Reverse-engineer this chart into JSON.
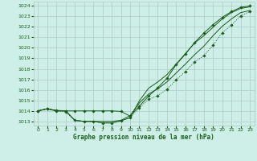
{
  "title": "Graphe pression niveau de la mer (hPa)",
  "bg_color": "#ceeee8",
  "grid_color": "#b0c8c4",
  "line_color": "#1a5c1a",
  "ylim": [
    1012.6,
    1024.4
  ],
  "xlim": [
    -0.5,
    23.5
  ],
  "yticks": [
    1013,
    1014,
    1015,
    1016,
    1017,
    1018,
    1019,
    1020,
    1021,
    1022,
    1023,
    1024
  ],
  "xticks": [
    0,
    1,
    2,
    3,
    4,
    5,
    6,
    7,
    8,
    9,
    10,
    11,
    12,
    13,
    14,
    15,
    16,
    17,
    18,
    19,
    20,
    21,
    22,
    23
  ],
  "series": [
    {
      "name": "line1_dotted_low",
      "x": [
        0,
        1,
        2,
        3,
        4,
        5,
        6,
        7,
        8,
        9,
        10,
        11,
        12,
        13,
        14,
        15,
        16,
        17,
        18,
        19,
        20,
        21,
        22,
        23
      ],
      "y": [
        1014.0,
        1014.2,
        1014.0,
        1013.9,
        1013.1,
        1013.0,
        1013.0,
        1012.85,
        1012.85,
        1013.05,
        1013.35,
        1014.3,
        1015.1,
        1015.45,
        1016.05,
        1016.95,
        1017.75,
        1018.65,
        1019.25,
        1020.25,
        1021.45,
        1022.15,
        1023.05,
        1023.45
      ],
      "linestyle": "dotted",
      "marker": true
    },
    {
      "name": "line2_flat",
      "x": [
        0,
        1,
        2,
        3,
        4,
        5,
        6,
        7,
        8,
        9,
        10,
        11,
        12,
        13,
        14,
        15,
        16,
        17,
        18,
        19,
        20,
        21,
        22,
        23
      ],
      "y": [
        1014.0,
        1014.2,
        1014.05,
        1014.0,
        1014.0,
        1014.0,
        1014.0,
        1014.0,
        1014.0,
        1013.95,
        1013.5,
        1014.45,
        1015.4,
        1016.2,
        1017.1,
        1018.4,
        1019.4,
        1020.5,
        1021.4,
        1022.2,
        1022.9,
        1023.45,
        1023.85,
        1024.0
      ],
      "linestyle": "solid",
      "marker": true
    },
    {
      "name": "line3_mid",
      "x": [
        0,
        1,
        2,
        3,
        4,
        5,
        6,
        7,
        8,
        9,
        10,
        11,
        12,
        13,
        14,
        15,
        16,
        17,
        18,
        19,
        20,
        21,
        22,
        23
      ],
      "y": [
        1014.0,
        1014.2,
        1014.0,
        1014.0,
        1013.1,
        1013.0,
        1013.0,
        1013.0,
        1013.0,
        1013.1,
        1013.55,
        1014.75,
        1015.6,
        1016.1,
        1016.75,
        1017.6,
        1018.45,
        1019.35,
        1020.15,
        1021.15,
        1022.05,
        1022.75,
        1023.35,
        1023.55
      ],
      "linestyle": "solid",
      "marker": false
    },
    {
      "name": "line4_high",
      "x": [
        0,
        1,
        2,
        3,
        4,
        5,
        6,
        7,
        8,
        9,
        10,
        11,
        12,
        13,
        14,
        15,
        16,
        17,
        18,
        19,
        20,
        21,
        22,
        23
      ],
      "y": [
        1014.0,
        1014.2,
        1014.0,
        1014.0,
        1013.1,
        1013.0,
        1013.0,
        1012.85,
        1012.85,
        1013.05,
        1013.35,
        1014.95,
        1016.15,
        1016.75,
        1017.45,
        1018.45,
        1019.45,
        1020.45,
        1021.15,
        1021.95,
        1022.75,
        1023.35,
        1023.75,
        1023.9
      ],
      "linestyle": "solid",
      "marker": false
    }
  ]
}
